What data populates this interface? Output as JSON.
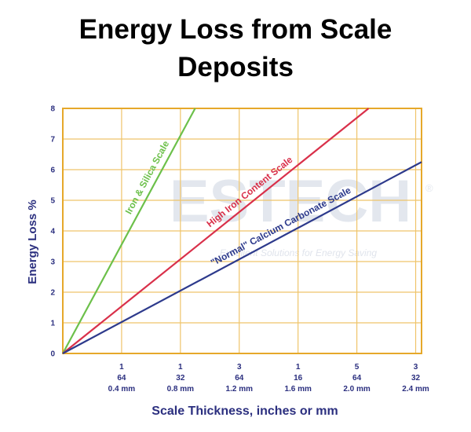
{
  "chart_data": {
    "type": "line",
    "title": "Energy Loss from Scale Deposits",
    "x_label": "Scale Thickness, inches or mm",
    "y_label": "Energy Loss %",
    "xlim": [
      0,
      2.44
    ],
    "ylim": [
      0,
      8
    ],
    "xticks": [
      {
        "value": 0.4,
        "label": [
          "1",
          "64",
          "0.4 mm"
        ]
      },
      {
        "value": 0.8,
        "label": [
          "1",
          "32",
          "0.8 mm"
        ]
      },
      {
        "value": 1.2,
        "label": [
          "3",
          "64",
          "1.2 mm"
        ]
      },
      {
        "value": 1.6,
        "label": [
          "1",
          "16",
          "1.6 mm"
        ]
      },
      {
        "value": 2.0,
        "label": [
          "5",
          "64",
          "2.0 mm"
        ]
      },
      {
        "value": 2.4,
        "label": [
          "3",
          "32",
          "2.4 mm"
        ]
      }
    ],
    "yticks": [
      0,
      1,
      2,
      3,
      4,
      5,
      6,
      7,
      8
    ],
    "grid": true,
    "series": [
      {
        "name": "Iron & Silica Scale",
        "color": "#6cc04a",
        "x": [
          0,
          0.9
        ],
        "values": [
          0,
          8
        ]
      },
      {
        "name": "High Iron Content Scale",
        "color": "#d9304a",
        "x": [
          0,
          2.08
        ],
        "values": [
          0,
          8
        ]
      },
      {
        "name": "\"Normal\" Calcium Carbonate Scale",
        "color": "#2d3a8c",
        "x": [
          0,
          2.44
        ],
        "values": [
          0,
          6.25
        ]
      }
    ]
  },
  "watermark": {
    "text": "ESTECH",
    "mark": "®",
    "tagline": "Excellent Solutions for Energy Saving"
  }
}
